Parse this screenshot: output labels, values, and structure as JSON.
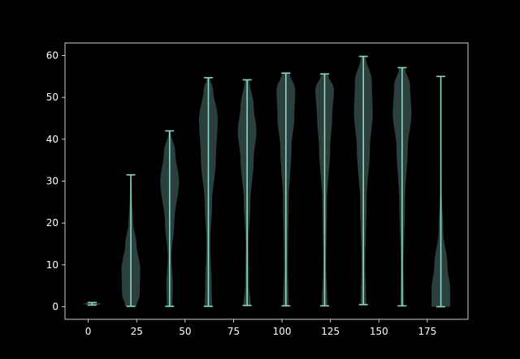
{
  "colors": {
    "background": "#000000",
    "axes": "#ffffff",
    "violin_fill": "#8dd3c7",
    "violin_line": "#8dd3c7"
  },
  "chart_data": {
    "type": "violin",
    "title": "",
    "xlabel": "",
    "ylabel": "",
    "xlim": [
      -12,
      196
    ],
    "ylim": [
      -3,
      63
    ],
    "xticks": [
      0,
      25,
      50,
      75,
      100,
      125,
      150,
      175
    ],
    "yticks": [
      0,
      10,
      20,
      30,
      40,
      50,
      60
    ],
    "grid": false,
    "violins": [
      {
        "x": 2,
        "min": 0.4,
        "max": 1.0,
        "profile": [
          [
            0.4,
            0.5
          ],
          [
            0.7,
            1.0
          ],
          [
            1.0,
            0.5
          ]
        ]
      },
      {
        "x": 22,
        "min": 0.1,
        "max": 31.5,
        "profile": [
          [
            0.1,
            0.6
          ],
          [
            3,
            0.95
          ],
          [
            9,
            1.0
          ],
          [
            15,
            0.6
          ],
          [
            20,
            0.25
          ],
          [
            26,
            0.12
          ],
          [
            31.5,
            0.05
          ]
        ]
      },
      {
        "x": 42,
        "min": 0.1,
        "max": 42,
        "profile": [
          [
            0.1,
            0.3
          ],
          [
            5,
            0.35
          ],
          [
            12,
            0.2
          ],
          [
            20,
            0.5
          ],
          [
            30,
            1.0
          ],
          [
            37,
            0.6
          ],
          [
            42,
            0.1
          ]
        ]
      },
      {
        "x": 62,
        "min": 0.1,
        "max": 54.7,
        "profile": [
          [
            0.1,
            0.4
          ],
          [
            5,
            0.35
          ],
          [
            15,
            0.2
          ],
          [
            25,
            0.4
          ],
          [
            35,
            0.8
          ],
          [
            45,
            1.0
          ],
          [
            52,
            0.5
          ],
          [
            54.7,
            0.15
          ]
        ]
      },
      {
        "x": 82,
        "min": 0.3,
        "max": 54.2,
        "profile": [
          [
            0.3,
            0.4
          ],
          [
            5,
            0.2
          ],
          [
            15,
            0.15
          ],
          [
            25,
            0.35
          ],
          [
            35,
            0.7
          ],
          [
            42,
            1.0
          ],
          [
            48,
            0.7
          ],
          [
            54.2,
            0.25
          ]
        ]
      },
      {
        "x": 102,
        "min": 0.2,
        "max": 55.8,
        "profile": [
          [
            0.2,
            0.3
          ],
          [
            10,
            0.2
          ],
          [
            25,
            0.3
          ],
          [
            38,
            0.6
          ],
          [
            45,
            0.9
          ],
          [
            52,
            1.0
          ],
          [
            55.8,
            0.4
          ]
        ]
      },
      {
        "x": 122,
        "min": 0.2,
        "max": 55.6,
        "profile": [
          [
            0.2,
            0.3
          ],
          [
            10,
            0.15
          ],
          [
            25,
            0.25
          ],
          [
            38,
            0.6
          ],
          [
            45,
            0.8
          ],
          [
            52,
            1.0
          ],
          [
            55.6,
            0.35
          ]
        ]
      },
      {
        "x": 142,
        "min": 0.5,
        "max": 59.8,
        "profile": [
          [
            0.5,
            0.3
          ],
          [
            10,
            0.2
          ],
          [
            25,
            0.35
          ],
          [
            38,
            0.7
          ],
          [
            46,
            1.0
          ],
          [
            54,
            0.9
          ],
          [
            59.8,
            0.25
          ]
        ]
      },
      {
        "x": 162,
        "min": 0.2,
        "max": 57.1,
        "profile": [
          [
            0.2,
            0.2
          ],
          [
            10,
            0.15
          ],
          [
            25,
            0.3
          ],
          [
            38,
            0.6
          ],
          [
            46,
            1.0
          ],
          [
            53,
            0.85
          ],
          [
            57.1,
            0.3
          ]
        ]
      },
      {
        "x": 182,
        "min": 0.0,
        "max": 55.0,
        "profile": [
          [
            0.0,
            1.0
          ],
          [
            4,
            1.0
          ],
          [
            10,
            0.7
          ],
          [
            18,
            0.25
          ],
          [
            28,
            0.08
          ],
          [
            40,
            0.03
          ],
          [
            55,
            0.02
          ]
        ]
      }
    ]
  }
}
